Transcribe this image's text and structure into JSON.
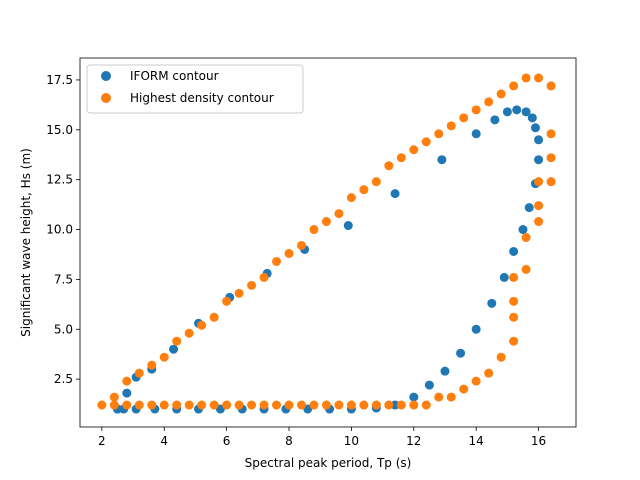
{
  "chart_data": {
    "type": "scatter",
    "title": "",
    "xlabel": "Spectral peak period, Tp (s)",
    "ylabel": "Significant wave height, Hs (m)",
    "xlim": [
      1.3,
      17.2
    ],
    "ylim": [
      0.1,
      18.6
    ],
    "xticks": [
      2,
      4,
      6,
      8,
      10,
      12,
      14,
      16
    ],
    "yticks": [
      2.5,
      5.0,
      7.5,
      10.0,
      12.5,
      15.0,
      17.5
    ],
    "ytick_labels": [
      "2.5",
      "5.0",
      "7.5",
      "10.0",
      "12.5",
      "15.0",
      "17.5"
    ],
    "grid": false,
    "legend_position": "top-left",
    "series": [
      {
        "name": "IFORM contour",
        "color": "#1f77b4",
        "x": [
          2.5,
          2.8,
          3.1,
          3.6,
          4.3,
          5.1,
          6.1,
          7.3,
          8.5,
          9.9,
          11.4,
          12.9,
          14.0,
          14.6,
          15.0,
          15.3,
          15.6,
          15.8,
          15.9,
          16.0,
          16.0,
          15.9,
          15.7,
          15.5,
          15.2,
          14.9,
          14.5,
          14.0,
          13.5,
          13.0,
          12.5,
          12.0,
          11.4,
          10.8,
          10.0,
          9.3,
          8.6,
          7.9,
          7.2,
          6.5,
          5.8,
          5.1,
          4.4,
          3.7,
          3.1,
          2.7,
          2.5
        ],
        "y": [
          1.0,
          1.8,
          2.6,
          3.0,
          4.0,
          5.3,
          6.6,
          7.8,
          9.0,
          10.2,
          11.8,
          13.5,
          14.8,
          15.5,
          15.9,
          16.0,
          15.9,
          15.6,
          15.1,
          14.5,
          13.5,
          12.3,
          11.1,
          10.0,
          8.9,
          7.6,
          6.3,
          5.0,
          3.8,
          2.9,
          2.2,
          1.6,
          1.2,
          1.05,
          1.0,
          1.0,
          1.0,
          1.0,
          1.0,
          1.0,
          1.0,
          1.0,
          1.0,
          1.0,
          1.0,
          1.0,
          1.0
        ]
      },
      {
        "name": "Highest density contour",
        "color": "#ff7f0e",
        "x": [
          2.0,
          2.4,
          2.8,
          3.2,
          3.6,
          4.0,
          4.4,
          4.8,
          5.2,
          5.6,
          6.0,
          6.4,
          6.8,
          7.2,
          7.6,
          8.0,
          8.4,
          8.8,
          9.2,
          9.6,
          10.0,
          10.4,
          10.8,
          11.2,
          11.6,
          12.0,
          12.4,
          12.8,
          13.2,
          13.6,
          14.0,
          14.4,
          14.8,
          15.2,
          15.6,
          16.0,
          16.4,
          16.4,
          16.4,
          16.4,
          16.0,
          16.0,
          16.0,
          15.6,
          15.6,
          15.2,
          15.2,
          15.2,
          15.2,
          14.8,
          14.4,
          14.0,
          13.6,
          13.2,
          12.8,
          12.4,
          12.0,
          11.6,
          11.2,
          10.8,
          10.4,
          10.0,
          9.6,
          9.2,
          8.8,
          8.4,
          8.0,
          7.6,
          7.2,
          6.8,
          6.4,
          6.0,
          5.6,
          5.2,
          4.8,
          4.4,
          4.0,
          3.6,
          3.2,
          2.8,
          2.4
        ],
        "y": [
          1.2,
          1.6,
          2.4,
          2.8,
          3.2,
          3.6,
          4.4,
          4.8,
          5.2,
          5.6,
          6.4,
          6.8,
          7.2,
          7.6,
          8.4,
          8.8,
          9.2,
          10.0,
          10.4,
          10.8,
          11.6,
          12.0,
          12.4,
          13.2,
          13.6,
          14.0,
          14.4,
          14.8,
          15.2,
          15.6,
          16.0,
          16.4,
          16.8,
          17.2,
          17.6,
          17.6,
          17.2,
          14.8,
          13.6,
          12.4,
          12.4,
          11.2,
          10.4,
          9.6,
          8.0,
          7.6,
          6.4,
          5.6,
          4.4,
          3.6,
          2.8,
          2.4,
          2.0,
          1.6,
          1.6,
          1.2,
          1.2,
          1.2,
          1.2,
          1.2,
          1.2,
          1.2,
          1.2,
          1.2,
          1.2,
          1.2,
          1.2,
          1.2,
          1.2,
          1.2,
          1.2,
          1.2,
          1.2,
          1.2,
          1.2,
          1.2,
          1.2,
          1.2,
          1.2,
          1.2,
          1.2
        ]
      }
    ]
  }
}
